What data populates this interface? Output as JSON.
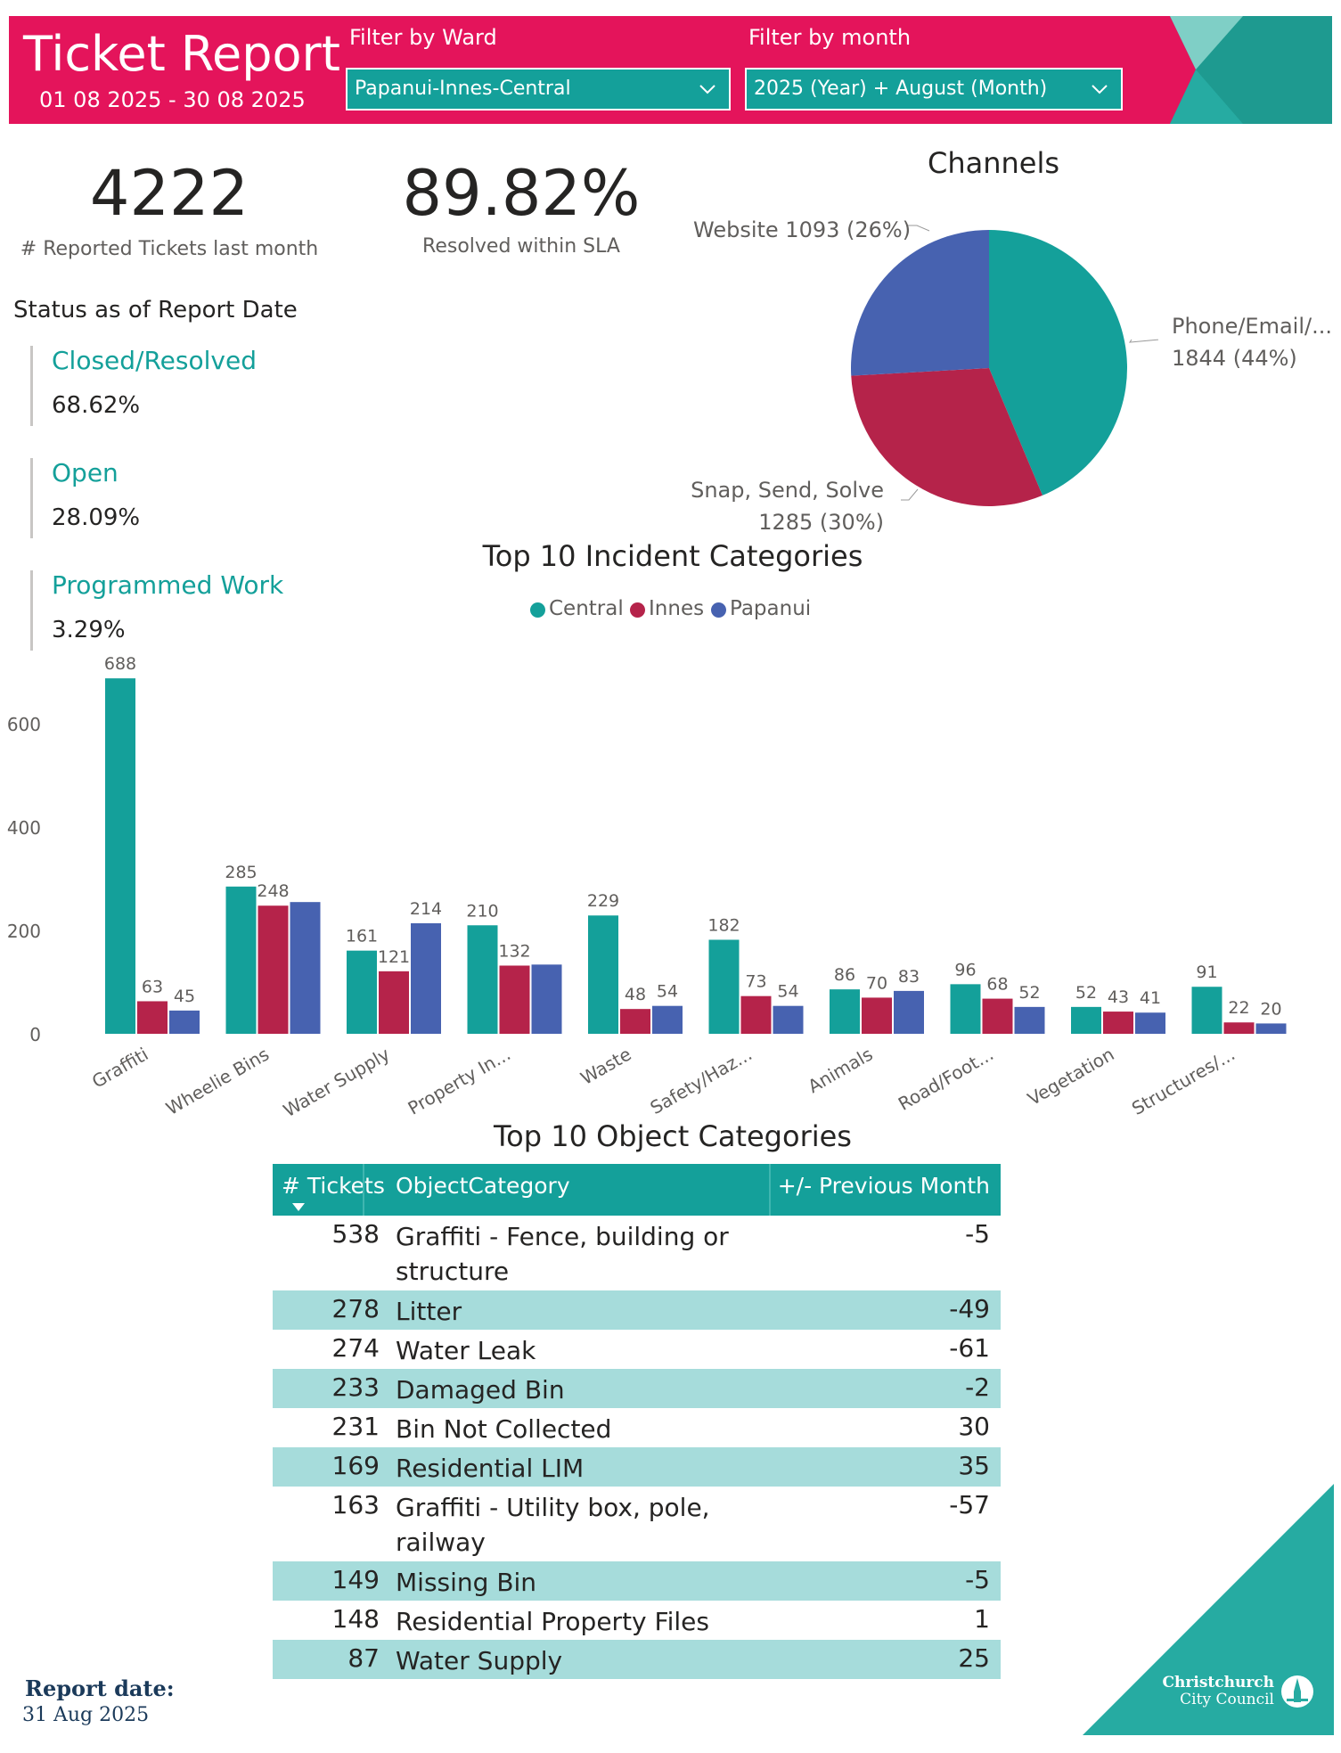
{
  "header": {
    "title": "Ticket Report",
    "date_range": "01 08 2025 - 30 08 2025",
    "ward_filter_label": "Filter by Ward",
    "ward_filter_value": "Papanui-Innes-Central",
    "month_filter_label": "Filter by month",
    "month_filter_value": "2025 (Year) + August (Month)"
  },
  "kpis": {
    "reported_value": "4222",
    "reported_label": "# Reported Tickets last month",
    "sla_value": "89.82%",
    "sla_label": "Resolved within SLA"
  },
  "status": {
    "title": "Status as of Report Date",
    "items": [
      {
        "name": "Closed/Resolved",
        "value": "68.62%"
      },
      {
        "name": "Open",
        "value": "28.09%"
      },
      {
        "name": "Programmed Work",
        "value": "3.29%"
      }
    ]
  },
  "channels": {
    "title": "Channels",
    "label_website": "Website 1093 (26%)",
    "label_phone_1": "Phone/Email/...",
    "label_phone_2": "1844 (44%)",
    "label_snap_1": "Snap, Send, Solve",
    "label_snap_2": "1285 (30%)"
  },
  "incidents": {
    "title": "Top 10 Incident Categories",
    "legend": [
      "Central",
      "Innes",
      "Papanui"
    ]
  },
  "objects": {
    "title": "Top 10 Object Categories",
    "headers": [
      "# Tickets",
      "ObjectCategory",
      "+/- Previous Month"
    ],
    "rows": [
      {
        "tickets": "538",
        "category": "Graffiti - Fence, building or structure",
        "change": "-5"
      },
      {
        "tickets": "278",
        "category": "Litter",
        "change": "-49"
      },
      {
        "tickets": "274",
        "category": "Water Leak",
        "change": "-61"
      },
      {
        "tickets": "233",
        "category": "Damaged Bin",
        "change": "-2"
      },
      {
        "tickets": "231",
        "category": "Bin Not Collected",
        "change": "30"
      },
      {
        "tickets": "169",
        "category": "Residential LIM",
        "change": "35"
      },
      {
        "tickets": "163",
        "category": "Graffiti - Utility box, pole, railway",
        "change": "-57"
      },
      {
        "tickets": "149",
        "category": "Missing Bin",
        "change": "-5"
      },
      {
        "tickets": "148",
        "category": "Residential Property Files",
        "change": "1"
      },
      {
        "tickets": "87",
        "category": "Water Supply",
        "change": "25"
      }
    ]
  },
  "footer": {
    "report_date_label": "Report date:",
    "report_date_value": "31 Aug 2025",
    "logo_line1": "Christchurch",
    "logo_line2": "City Council"
  },
  "colors": {
    "accent": "#e4145b",
    "teal": "#14a09a",
    "innes": "#b5234a",
    "papanui": "#4762b0",
    "row_alt": "#a6dcdb"
  },
  "chart_data": [
    {
      "type": "pie",
      "title": "Channels",
      "slices": [
        {
          "label": "Phone/Email/...",
          "value": 1844,
          "percent": 44,
          "color": "#14a09a"
        },
        {
          "label": "Snap, Send, Solve",
          "value": 1285,
          "percent": 30,
          "color": "#b5234a"
        },
        {
          "label": "Website",
          "value": 1093,
          "percent": 26,
          "color": "#4762b0"
        }
      ]
    },
    {
      "type": "bar",
      "title": "Top 10 Incident Categories",
      "categories": [
        "Graffiti",
        "Wheelie Bins",
        "Water Supply",
        "Property In...",
        "Waste",
        "Safety/Haz...",
        "Animals",
        "Road/Foot...",
        "Vegetation",
        "Structures/..."
      ],
      "series": [
        {
          "name": "Central",
          "color": "#14a09a",
          "values": [
            688,
            285,
            161,
            210,
            229,
            182,
            86,
            96,
            52,
            91
          ]
        },
        {
          "name": "Innes",
          "color": "#b5234a",
          "values": [
            63,
            248,
            121,
            132,
            48,
            73,
            70,
            68,
            43,
            22
          ]
        },
        {
          "name": "Papanui",
          "color": "#4762b0",
          "values": [
            45,
            255,
            214,
            134,
            54,
            54,
            83,
            52,
            41,
            20
          ]
        }
      ],
      "data_labels": [
        [
          "688",
          "285",
          "161",
          "210",
          "229",
          "182",
          "86",
          "96",
          "52",
          "91"
        ],
        [
          "63",
          "248",
          "121",
          "132",
          "48",
          "73",
          "70",
          "68",
          "43",
          "22"
        ],
        [
          "45",
          "",
          "214",
          "",
          "54",
          "54",
          "83",
          "52",
          "41",
          "20"
        ]
      ],
      "yticks": [
        0,
        200,
        400,
        600
      ],
      "ylim": [
        0,
        690
      ],
      "grid": false,
      "legend_position": "top"
    }
  ]
}
